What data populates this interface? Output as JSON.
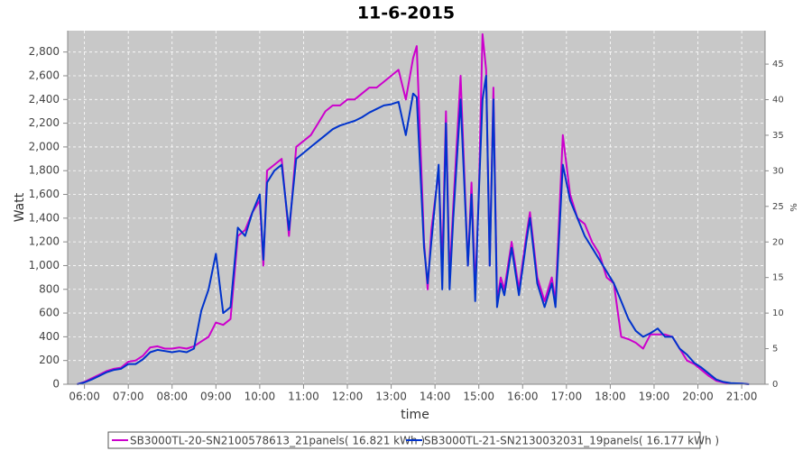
{
  "chart_data": {
    "type": "line",
    "title": "11-6-2015",
    "x_label": "time",
    "y_label": "Watt",
    "y2_label": "%",
    "x": [
      "05:50",
      "06:00",
      "06:10",
      "06:20",
      "06:30",
      "06:40",
      "06:50",
      "07:00",
      "07:10",
      "07:20",
      "07:30",
      "07:40",
      "07:50",
      "08:00",
      "08:10",
      "08:20",
      "08:30",
      "08:40",
      "08:50",
      "09:00",
      "09:10",
      "09:20",
      "09:30",
      "09:40",
      "09:50",
      "10:00",
      "10:05",
      "10:10",
      "10:20",
      "10:30",
      "10:40",
      "10:50",
      "11:00",
      "11:10",
      "11:20",
      "11:30",
      "11:40",
      "11:50",
      "12:00",
      "12:10",
      "12:20",
      "12:30",
      "12:40",
      "12:50",
      "13:00",
      "13:10",
      "13:20",
      "13:30",
      "13:35",
      "13:45",
      "13:50",
      "13:55",
      "14:05",
      "14:10",
      "14:15",
      "14:20",
      "14:25",
      "14:35",
      "14:45",
      "14:50",
      "14:55",
      "15:00",
      "15:05",
      "15:10",
      "15:15",
      "15:20",
      "15:25",
      "15:30",
      "15:35",
      "15:45",
      "15:55",
      "16:05",
      "16:10",
      "16:20",
      "16:30",
      "16:40",
      "16:45",
      "16:55",
      "17:05",
      "17:15",
      "17:25",
      "17:35",
      "17:45",
      "17:55",
      "18:05",
      "18:15",
      "18:25",
      "18:35",
      "18:45",
      "18:55",
      "19:05",
      "19:15",
      "19:25",
      "19:35",
      "19:45",
      "19:55",
      "20:05",
      "20:15",
      "20:25",
      "20:35",
      "20:45",
      "21:00",
      "21:10"
    ],
    "series": [
      {
        "name": "SB3000TL-20-SN2100578613_21panels( 16.821 kWh )",
        "color": "#cc00cc",
        "values": [
          0,
          20,
          50,
          80,
          110,
          130,
          140,
          190,
          200,
          240,
          310,
          320,
          300,
          300,
          310,
          300,
          320,
          360,
          400,
          520,
          500,
          550,
          1250,
          1300,
          1450,
          1550,
          1000,
          1800,
          1850,
          1900,
          1250,
          2000,
          2050,
          2100,
          2200,
          2300,
          2350,
          2350,
          2400,
          2400,
          2450,
          2500,
          2500,
          2550,
          2600,
          2650,
          2400,
          2750,
          2850,
          1200,
          800,
          1300,
          1800,
          1000,
          2300,
          900,
          1500,
          2600,
          1000,
          1700,
          800,
          1600,
          2950,
          2650,
          1000,
          2500,
          700,
          900,
          800,
          1200,
          800,
          1250,
          1450,
          900,
          700,
          900,
          700,
          2100,
          1600,
          1400,
          1350,
          1200,
          1100,
          900,
          850,
          400,
          380,
          350,
          300,
          420,
          420,
          420,
          400,
          300,
          200,
          170,
          120,
          70,
          30,
          15,
          5,
          5,
          0
        ]
      },
      {
        "name": "SB3000TL-21-SN2130032031_19panels( 16.177 kWh )",
        "color": "#0033cc",
        "values": [
          0,
          15,
          40,
          70,
          100,
          120,
          130,
          170,
          170,
          210,
          270,
          290,
          280,
          270,
          280,
          270,
          300,
          620,
          800,
          1100,
          600,
          650,
          1320,
          1250,
          1450,
          1600,
          1050,
          1700,
          1800,
          1850,
          1300,
          1900,
          1950,
          2000,
          2050,
          2100,
          2150,
          2180,
          2200,
          2220,
          2250,
          2290,
          2320,
          2350,
          2360,
          2380,
          2100,
          2450,
          2420,
          1150,
          850,
          1200,
          1850,
          800,
          2200,
          800,
          1400,
          2400,
          1000,
          1600,
          700,
          1600,
          2400,
          2600,
          1000,
          2400,
          650,
          850,
          750,
          1150,
          750,
          1200,
          1400,
          850,
          650,
          850,
          650,
          1850,
          1550,
          1400,
          1250,
          1150,
          1050,
          950,
          850,
          700,
          550,
          450,
          400,
          430,
          470,
          400,
          400,
          300,
          250,
          180,
          140,
          90,
          40,
          20,
          10,
          5,
          0
        ]
      }
    ],
    "xlim": [
      "05:37",
      "21:32"
    ],
    "xticks": [
      "06:00",
      "07:00",
      "08:00",
      "09:00",
      "10:00",
      "11:00",
      "12:00",
      "13:00",
      "14:00",
      "15:00",
      "16:00",
      "17:00",
      "18:00",
      "19:00",
      "20:00",
      "21:00"
    ],
    "ylim": [
      0,
      2980
    ],
    "yticks": [
      0,
      200,
      400,
      600,
      800,
      {
        "value": 1000,
        "label": "1,000"
      },
      {
        "value": 1200,
        "label": "1,200"
      },
      {
        "value": 1400,
        "label": "1,400"
      },
      {
        "value": 1600,
        "label": "1,600"
      },
      {
        "value": 1800,
        "label": "1,800"
      },
      {
        "value": 2000,
        "label": "2,000"
      },
      {
        "value": 2200,
        "label": "2,200"
      },
      {
        "value": 2400,
        "label": "2,400"
      },
      {
        "value": 2600,
        "label": "2,600"
      },
      {
        "value": 2800,
        "label": "2,800"
      }
    ],
    "y2lim": [
      0,
      49.7
    ],
    "y2ticks": [
      0,
      5,
      10,
      15,
      20,
      25,
      30,
      35,
      40,
      45
    ],
    "grid": true
  }
}
